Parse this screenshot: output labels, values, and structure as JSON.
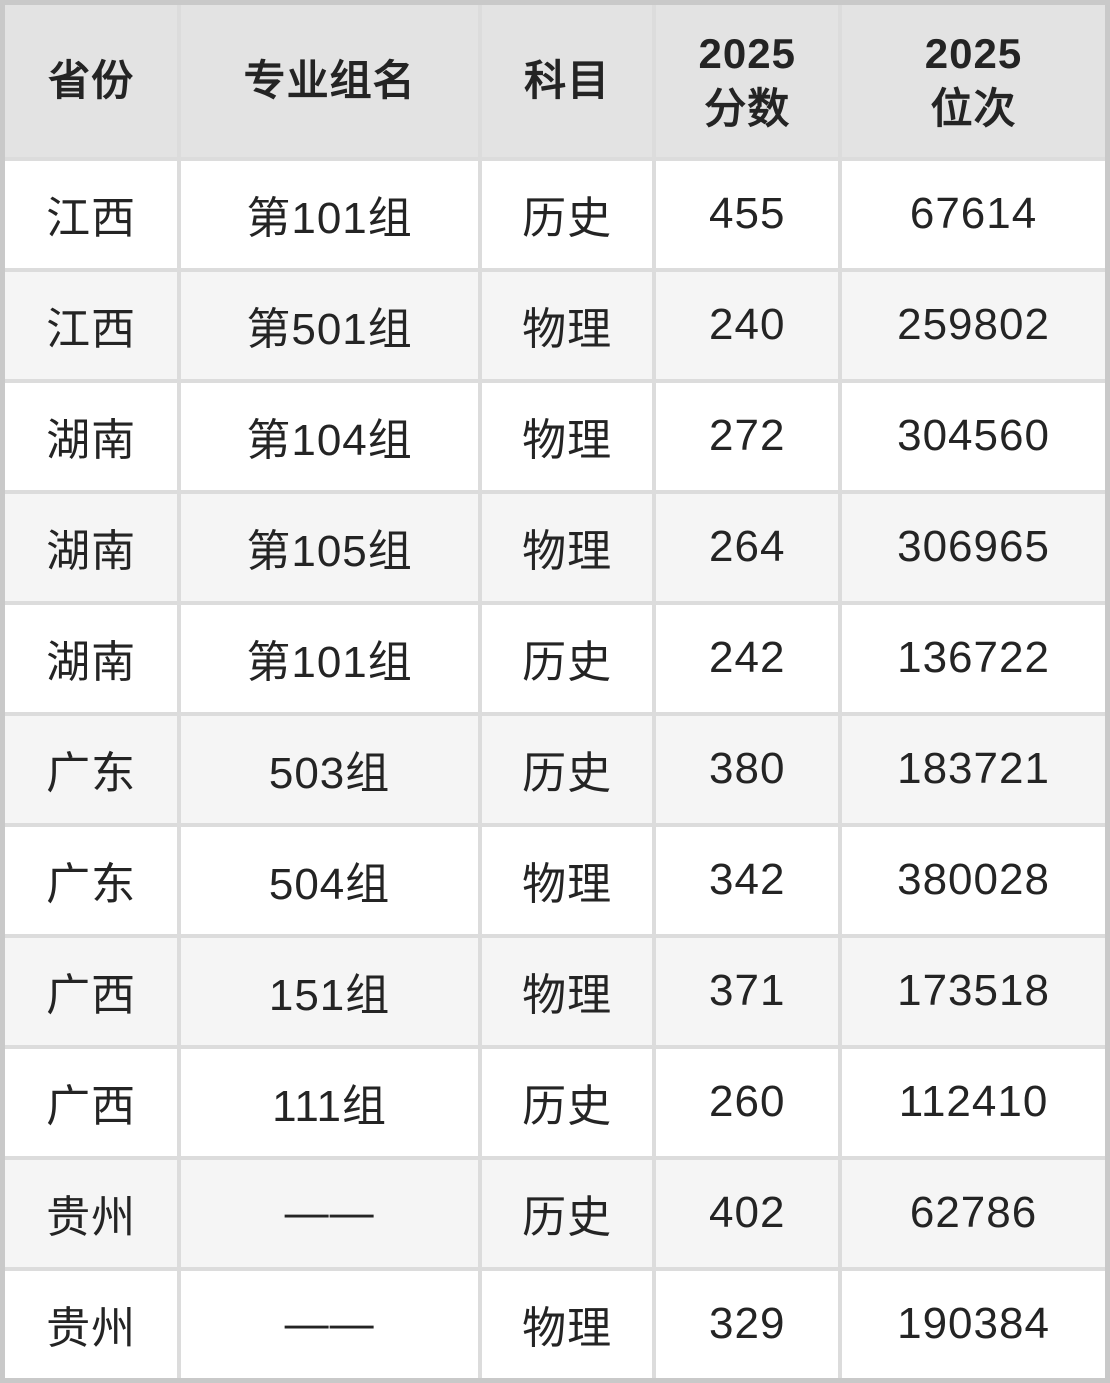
{
  "colors": {
    "header_bg": "#e3e3e3",
    "row_bg": "#ffffff",
    "row_alt_bg": "#f5f5f5",
    "border": "#dcdcdc",
    "outer_border": "#c9c9c9",
    "text": "#242424"
  },
  "chart_data": {
    "type": "table",
    "columns": [
      {
        "key": "province",
        "lines": [
          "省份"
        ]
      },
      {
        "key": "group_name",
        "lines": [
          "专业组名"
        ]
      },
      {
        "key": "subject",
        "lines": [
          "科目"
        ]
      },
      {
        "key": "score_2025",
        "lines": [
          "2025",
          "分数"
        ]
      },
      {
        "key": "rank_2025",
        "lines": [
          "2025",
          "位次"
        ]
      }
    ],
    "rows": [
      [
        "江西",
        "第101组",
        "历史",
        455,
        67614
      ],
      [
        "江西",
        "第501组",
        "物理",
        240,
        259802
      ],
      [
        "湖南",
        "第104组",
        "物理",
        272,
        304560
      ],
      [
        "湖南",
        "第105组",
        "物理",
        264,
        306965
      ],
      [
        "湖南",
        "第101组",
        "历史",
        242,
        136722
      ],
      [
        "广东",
        "503组",
        "历史",
        380,
        183721
      ],
      [
        "广东",
        "504组",
        "物理",
        342,
        380028
      ],
      [
        "广西",
        "151组",
        "物理",
        371,
        173518
      ],
      [
        "广西",
        "111组",
        "历史",
        260,
        112410
      ],
      [
        "贵州",
        "——",
        "历史",
        402,
        62786
      ],
      [
        "贵州",
        "——",
        "物理",
        329,
        190384
      ]
    ]
  }
}
